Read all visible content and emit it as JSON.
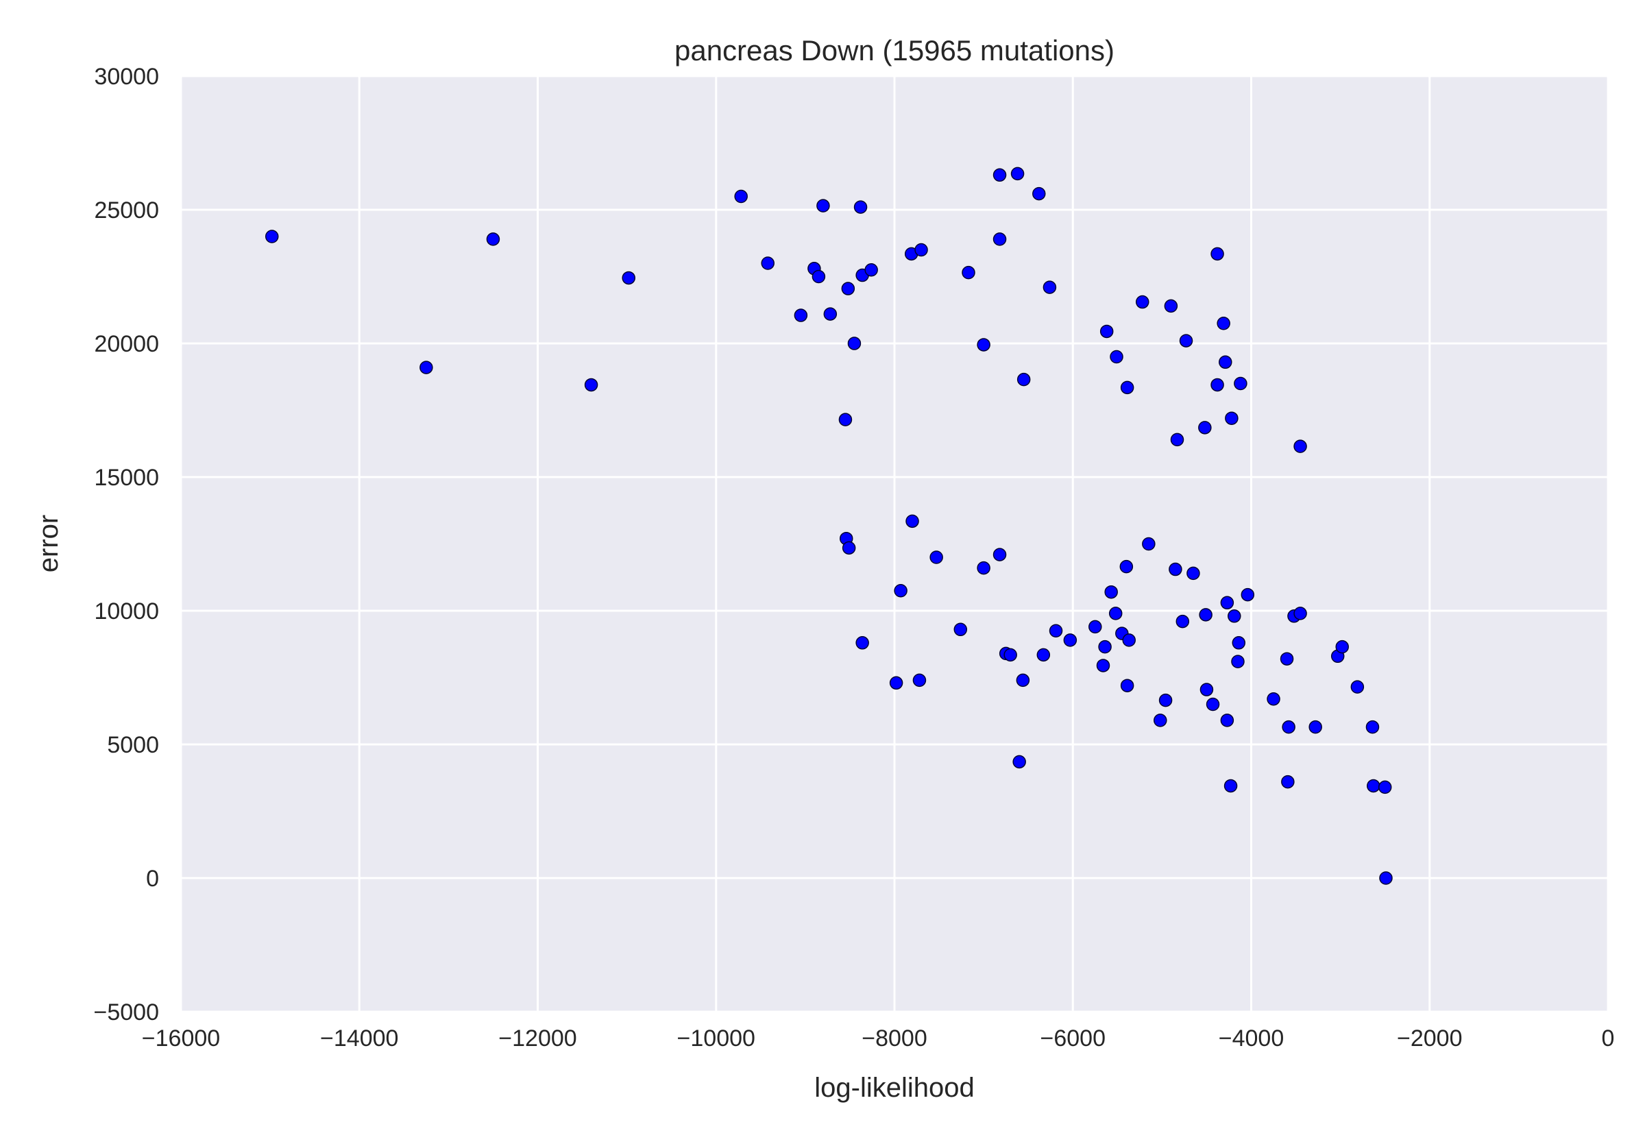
{
  "chart_data": {
    "type": "scatter",
    "title": "pancreas Down (15965 mutations)",
    "xlabel": "log-likelihood",
    "ylabel": "error",
    "xlim": [
      -16000,
      0
    ],
    "ylim": [
      -5000,
      30000
    ],
    "xticks": [
      -16000,
      -14000,
      -12000,
      -10000,
      -8000,
      -6000,
      -4000,
      -2000,
      0
    ],
    "xtick_labels": [
      "−16000",
      "−14000",
      "−12000",
      "−10000",
      "−8000",
      "−6000",
      "−4000",
      "−2000",
      "0"
    ],
    "yticks": [
      -5000,
      0,
      5000,
      10000,
      15000,
      20000,
      25000,
      30000
    ],
    "ytick_labels": [
      "−5000",
      "0",
      "5000",
      "10000",
      "15000",
      "20000",
      "25000",
      "30000"
    ],
    "grid": true,
    "colors": {
      "background": "#eaeaf2",
      "grid": "#ffffff",
      "marker": "#0000ff",
      "marker_edge": "#000033"
    },
    "points": [
      [
        -14980,
        24000
      ],
      [
        -13250,
        19100
      ],
      [
        -12500,
        23900
      ],
      [
        -11400,
        18450
      ],
      [
        -10980,
        22450
      ],
      [
        -9720,
        25500
      ],
      [
        -9420,
        23000
      ],
      [
        -9050,
        21050
      ],
      [
        -8900,
        22800
      ],
      [
        -8850,
        22500
      ],
      [
        -8800,
        25150
      ],
      [
        -8720,
        21100
      ],
      [
        -8550,
        17150
      ],
      [
        -8520,
        22050
      ],
      [
        -8450,
        20000
      ],
      [
        -8380,
        25100
      ],
      [
        -8360,
        22550
      ],
      [
        -8260,
        22750
      ],
      [
        -7810,
        23350
      ],
      [
        -7700,
        23500
      ],
      [
        -7170,
        22650
      ],
      [
        -7000,
        19950
      ],
      [
        -6820,
        26300
      ],
      [
        -6820,
        23900
      ],
      [
        -6620,
        26350
      ],
      [
        -6550,
        18650
      ],
      [
        -6380,
        25600
      ],
      [
        -6260,
        22100
      ],
      [
        -5620,
        20450
      ],
      [
        -5510,
        19500
      ],
      [
        -5390,
        18350
      ],
      [
        -5220,
        21550
      ],
      [
        -4900,
        21400
      ],
      [
        -4730,
        20100
      ],
      [
        -4830,
        16400
      ],
      [
        -4520,
        16850
      ],
      [
        -4380,
        23350
      ],
      [
        -4380,
        18450
      ],
      [
        -4310,
        20750
      ],
      [
        -4290,
        19300
      ],
      [
        -4220,
        17200
      ],
      [
        -4120,
        18500
      ],
      [
        -3450,
        16150
      ],
      [
        -8540,
        12700
      ],
      [
        -8510,
        12350
      ],
      [
        -7800,
        13350
      ],
      [
        -7530,
        12000
      ],
      [
        -7000,
        11600
      ],
      [
        -6820,
        12100
      ],
      [
        -7930,
        10750
      ],
      [
        -8360,
        8800
      ],
      [
        -7980,
        7300
      ],
      [
        -7720,
        7400
      ],
      [
        -7260,
        9300
      ],
      [
        -6750,
        8400
      ],
      [
        -6700,
        8350
      ],
      [
        -6560,
        7400
      ],
      [
        -6600,
        4350
      ],
      [
        -6330,
        8350
      ],
      [
        -6190,
        9250
      ],
      [
        -6030,
        8900
      ],
      [
        -5750,
        9400
      ],
      [
        -5660,
        7950
      ],
      [
        -5640,
        8650
      ],
      [
        -5570,
        10700
      ],
      [
        -5520,
        9900
      ],
      [
        -5450,
        9150
      ],
      [
        -5400,
        11650
      ],
      [
        -5370,
        8900
      ],
      [
        -5390,
        7200
      ],
      [
        -5150,
        12500
      ],
      [
        -5020,
        5900
      ],
      [
        -4960,
        6650
      ],
      [
        -4850,
        11550
      ],
      [
        -4770,
        9600
      ],
      [
        -4650,
        11400
      ],
      [
        -4510,
        9850
      ],
      [
        -4500,
        7050
      ],
      [
        -4430,
        6500
      ],
      [
        -4270,
        10300
      ],
      [
        -4270,
        5900
      ],
      [
        -4230,
        3450
      ],
      [
        -4190,
        9800
      ],
      [
        -4140,
        8800
      ],
      [
        -4150,
        8100
      ],
      [
        -4040,
        10600
      ],
      [
        -3750,
        6700
      ],
      [
        -3600,
        8200
      ],
      [
        -3580,
        5650
      ],
      [
        -3590,
        3600
      ],
      [
        -3520,
        9800
      ],
      [
        -3450,
        9900
      ],
      [
        -3280,
        5650
      ],
      [
        -3030,
        8300
      ],
      [
        -2980,
        8650
      ],
      [
        -2810,
        7150
      ],
      [
        -2640,
        5650
      ],
      [
        -2630,
        3450
      ],
      [
        -2500,
        3400
      ],
      [
        -2490,
        0
      ]
    ]
  }
}
